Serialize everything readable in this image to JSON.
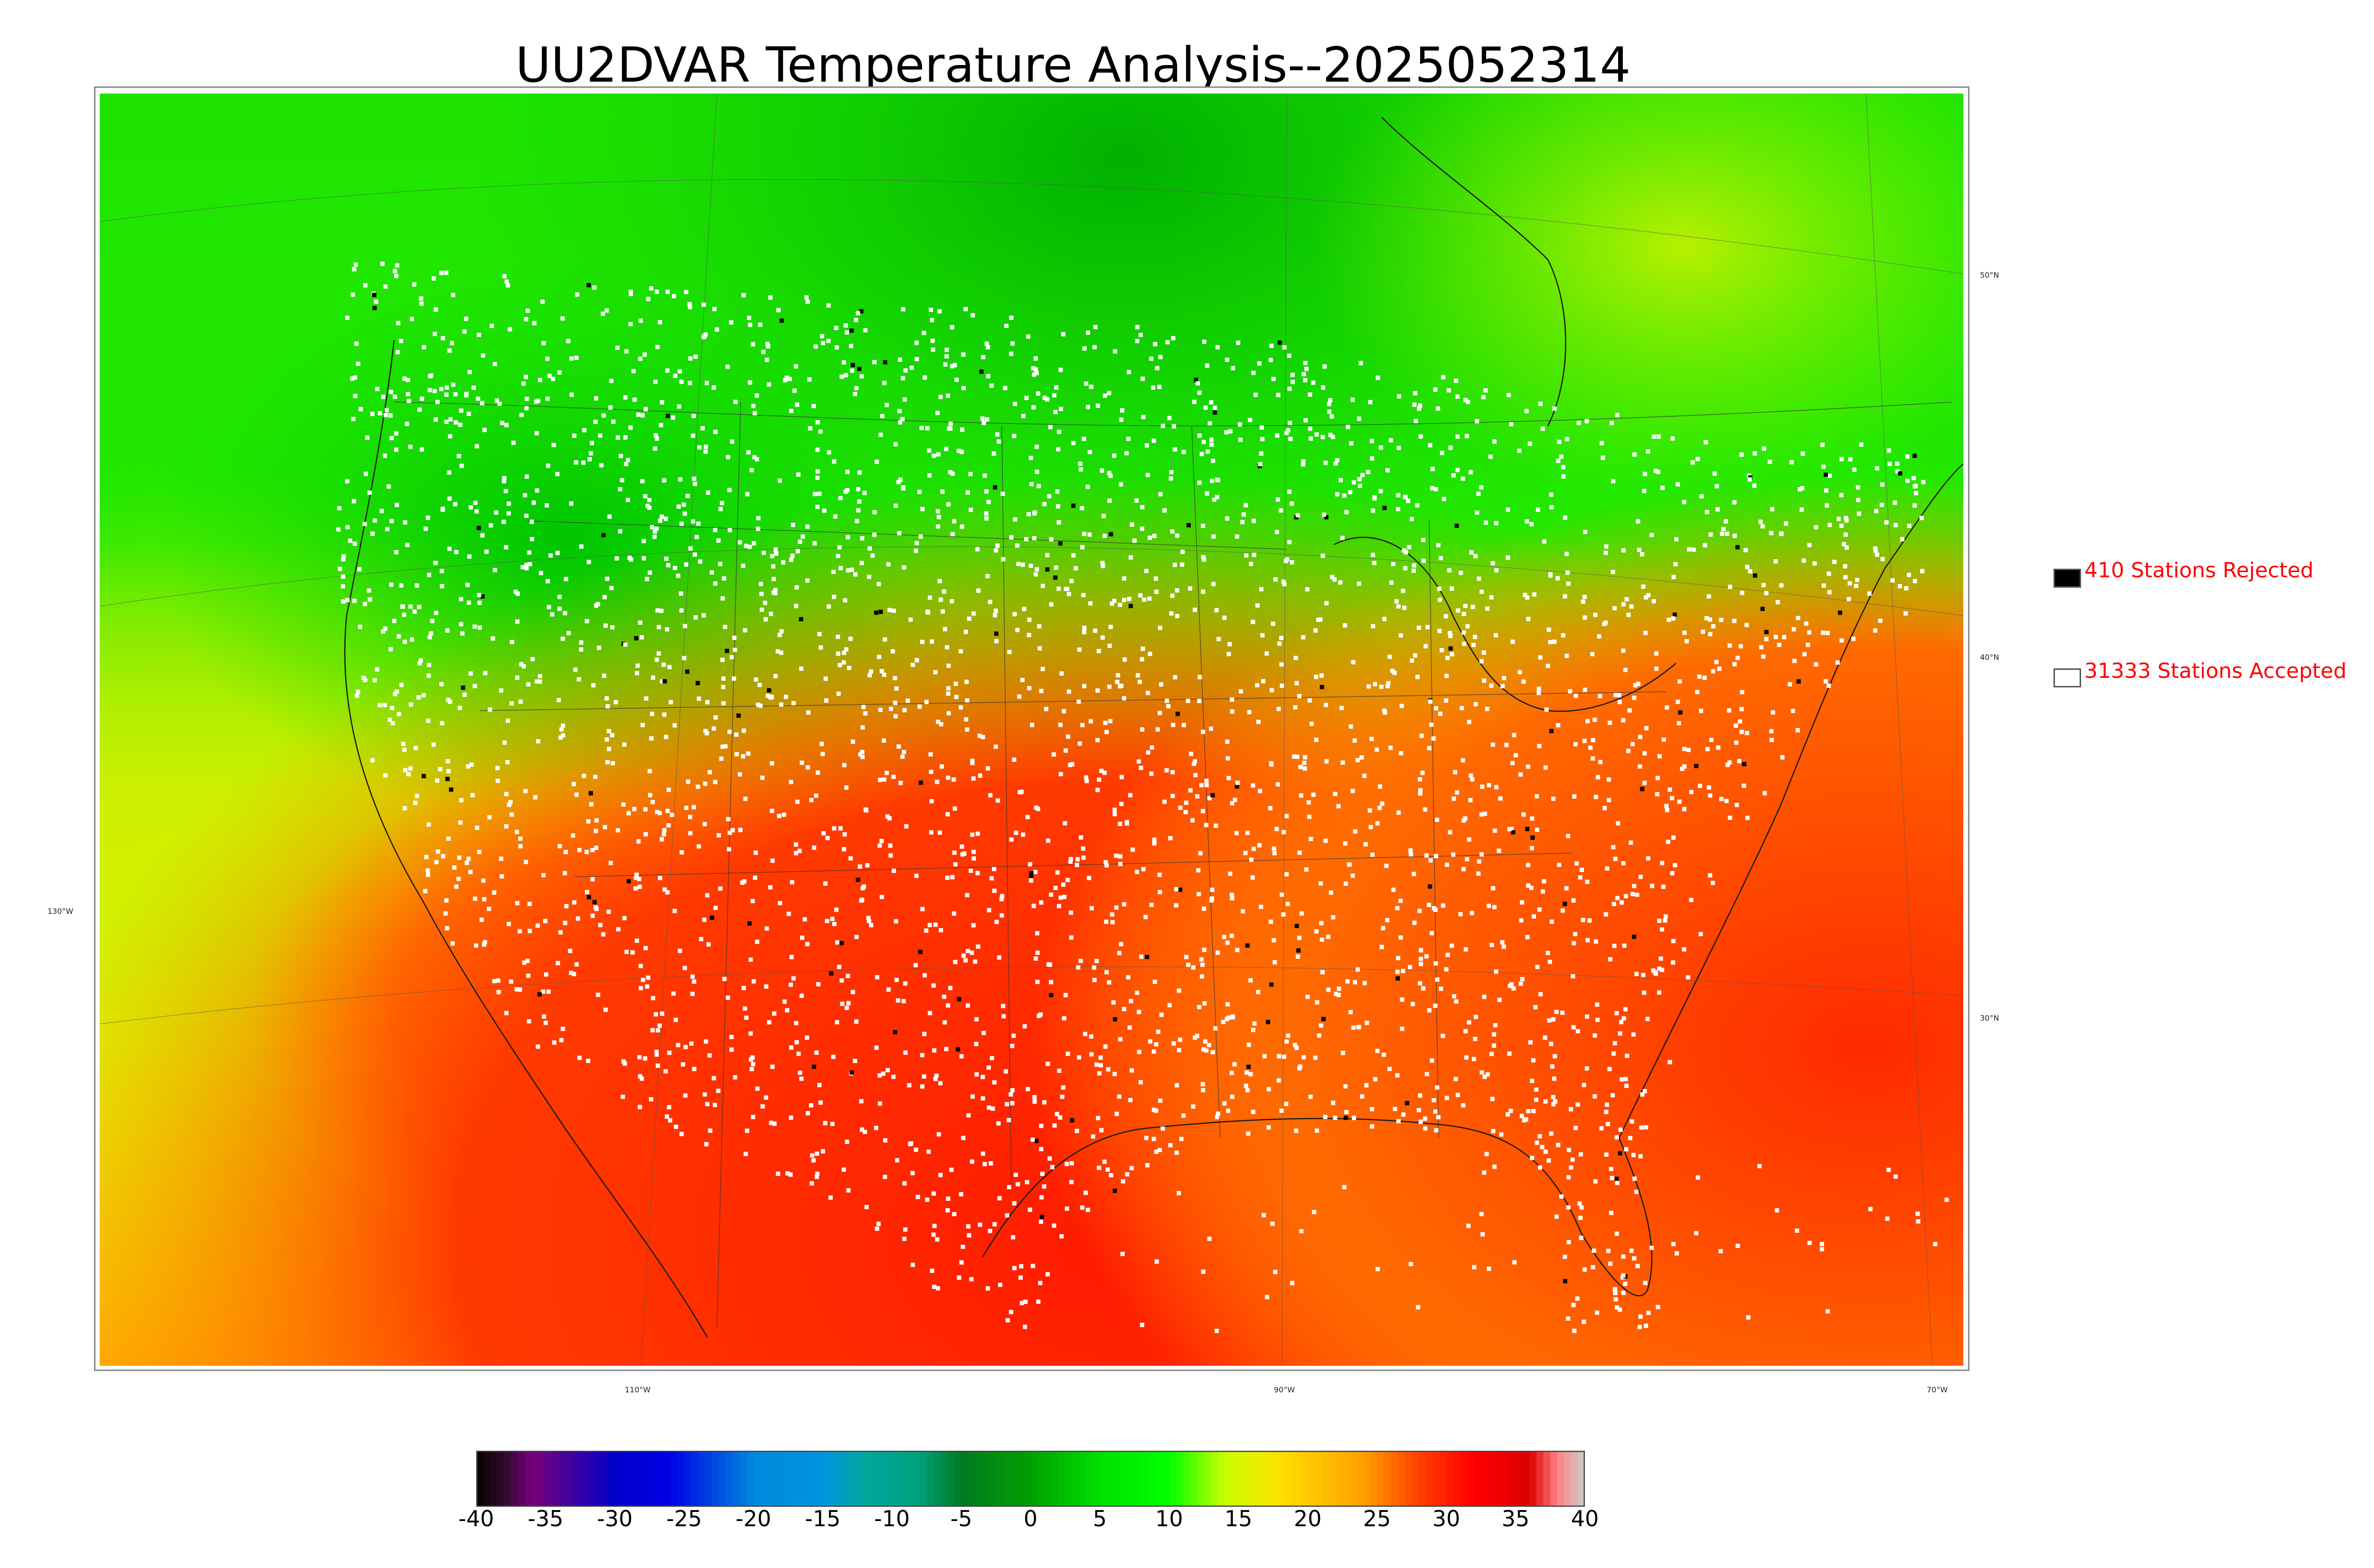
{
  "title": "UU2DVAR Temperature Analysis--2025052314",
  "map": {
    "lon_labels": [
      "110°W",
      "90°W",
      "70°W"
    ],
    "lat_labels_right": [
      "50°N",
      "40°N",
      "30°N"
    ],
    "lat_labels_left": [
      "130°W"
    ]
  },
  "legend": {
    "rejected_label": "410 Stations Rejected",
    "rejected_color": "#000000",
    "accepted_label": "31333 Stations Accepted",
    "accepted_color": "#ffffff"
  },
  "colorbar": {
    "ticks": [
      "-40",
      "-35",
      "-30",
      "-25",
      "-20",
      "-15",
      "-10",
      "-5",
      "0",
      "5",
      "10",
      "15",
      "20",
      "25",
      "30",
      "35",
      "40"
    ],
    "min": -40,
    "max": 40,
    "colors": {
      "-40": "#0a0000",
      "-38": "#2a0a2a",
      "-36": "#7a007a",
      "-30": "#0000c8",
      "-26": "#0000e6",
      "-20": "#0088dd",
      "-15": "#0094dd",
      "-12": "#00a8a0",
      "-8": "#00a07a",
      "-5": "#007a20",
      "0": "#00a000",
      "5": "#00e000",
      "10": "#00ff00",
      "14": "#c8ff00",
      "18": "#ffe000",
      "24": "#ffa000",
      "28": "#ff4000",
      "32": "#ff0000",
      "36": "#dd0000",
      "38": "#ff8080",
      "40": "#cccccc"
    }
  },
  "colors": {
    "ocean_west": "#d4f200",
    "north_canada": "#22e000",
    "gulf": "#ff2a00",
    "atlantic_south": "#ff5a00",
    "desert": "#ff6a00",
    "plains": "#e8f000"
  }
}
